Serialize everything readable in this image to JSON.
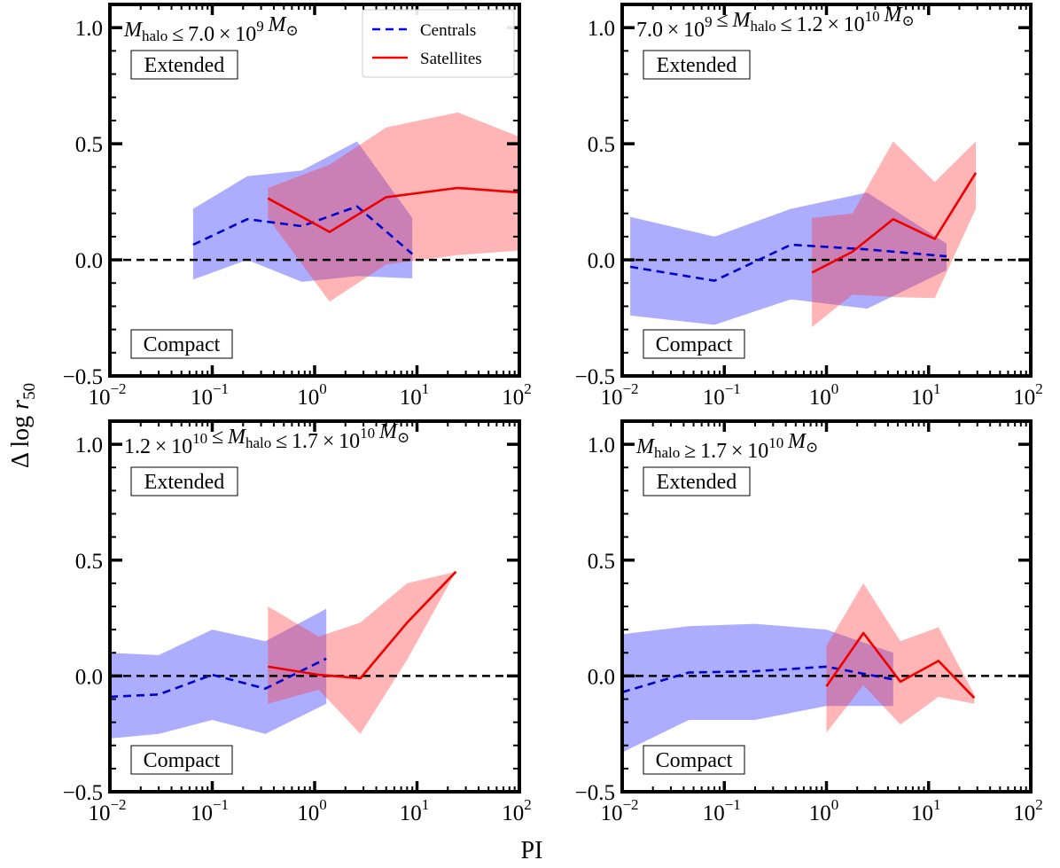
{
  "figure": {
    "xlabel": "PI",
    "ylabel": "Δ log r",
    "ylabel_sub": "50"
  },
  "legend": {
    "entries": [
      {
        "label": "Centrals",
        "color": "#0000ff",
        "style": "dashed"
      },
      {
        "label": "Satellites",
        "color": "#ff0000",
        "style": "solid"
      }
    ]
  },
  "labels": {
    "extended": "Extended",
    "compact": "Compact"
  },
  "chart_data": [
    {
      "type": "line",
      "title": "M_halo ≤ 7.0 × 10^9 M⊙",
      "xscale": "log",
      "xlim": [
        0.01,
        100
      ],
      "ylim": [
        -0.5,
        1.1
      ],
      "zero_line": 0,
      "series": [
        {
          "name": "Centrals",
          "x": [
            0.065,
            0.22,
            0.75,
            2.6,
            9.0
          ],
          "y": [
            0.065,
            0.175,
            0.145,
            0.23,
            0.025
          ],
          "lower": [
            -0.085,
            0.0,
            -0.095,
            -0.07,
            -0.08
          ],
          "upper": [
            0.22,
            0.36,
            0.385,
            0.51,
            0.18
          ]
        },
        {
          "name": "Satellites",
          "x": [
            0.35,
            1.4,
            5.0,
            25,
            100
          ],
          "y": [
            0.265,
            0.12,
            0.27,
            0.31,
            0.29
          ],
          "lower": [
            0.18,
            -0.18,
            -0.02,
            0.02,
            0.04
          ],
          "upper": [
            0.31,
            0.41,
            0.57,
            0.635,
            0.53
          ]
        }
      ]
    },
    {
      "type": "line",
      "title": "7.0 × 10^9 ≤ M_halo ≤ 1.2 × 10^10 M⊙",
      "xscale": "log",
      "xlim": [
        0.01,
        100
      ],
      "ylim": [
        -0.5,
        1.1
      ],
      "zero_line": 0,
      "series": [
        {
          "name": "Centrals",
          "x": [
            0.012,
            0.08,
            0.45,
            2.5,
            15
          ],
          "y": [
            -0.03,
            -0.09,
            0.065,
            0.045,
            0.015
          ],
          "lower": [
            -0.24,
            -0.28,
            -0.17,
            -0.21,
            -0.045
          ],
          "upper": [
            0.185,
            0.1,
            0.22,
            0.29,
            0.07
          ]
        },
        {
          "name": "Satellites",
          "x": [
            0.72,
            1.8,
            4.5,
            11.5,
            29
          ],
          "y": [
            -0.055,
            0.035,
            0.175,
            0.09,
            0.375
          ],
          "lower": [
            -0.29,
            -0.15,
            -0.16,
            -0.165,
            0.22
          ],
          "upper": [
            0.18,
            0.2,
            0.51,
            0.335,
            0.51
          ]
        }
      ]
    },
    {
      "type": "line",
      "title": "1.2 × 10^10 ≤ M_halo ≤ 1.7 × 10^10 M⊙",
      "xscale": "log",
      "xlim": [
        0.01,
        100
      ],
      "ylim": [
        -0.5,
        1.1
      ],
      "zero_line": 0,
      "series": [
        {
          "name": "Centrals",
          "x": [
            0.01,
            0.03,
            0.1,
            0.33,
            1.3
          ],
          "y": [
            -0.09,
            -0.08,
            0.005,
            -0.055,
            0.075
          ],
          "lower": [
            -0.27,
            -0.25,
            -0.19,
            -0.25,
            -0.12
          ],
          "upper": [
            0.1,
            0.09,
            0.2,
            0.15,
            0.29
          ]
        },
        {
          "name": "Satellites",
          "x": [
            0.35,
            1.1,
            2.8,
            8.0,
            24
          ],
          "y": [
            0.04,
            0.005,
            -0.01,
            0.23,
            0.45
          ],
          "lower": [
            -0.12,
            -0.06,
            -0.25,
            0.07,
            0.45
          ],
          "upper": [
            0.3,
            0.17,
            0.23,
            0.4,
            0.45
          ]
        }
      ]
    },
    {
      "type": "line",
      "title": "M_halo ≥ 1.7 × 10^10 M⊙",
      "xscale": "log",
      "xlim": [
        0.01,
        100
      ],
      "ylim": [
        -0.5,
        1.1
      ],
      "zero_line": 0,
      "series": [
        {
          "name": "Centrals",
          "x": [
            0.01,
            0.045,
            0.2,
            1.0,
            4.5
          ],
          "y": [
            -0.07,
            0.015,
            0.02,
            0.04,
            -0.015
          ],
          "lower": [
            -0.33,
            -0.19,
            -0.19,
            -0.13,
            -0.13
          ],
          "upper": [
            0.18,
            0.215,
            0.225,
            0.2,
            0.1
          ]
        },
        {
          "name": "Satellites",
          "x": [
            1.0,
            2.3,
            5.3,
            12.5,
            28
          ],
          "y": [
            -0.045,
            0.185,
            -0.025,
            0.065,
            -0.095
          ],
          "lower": [
            -0.245,
            -0.04,
            -0.21,
            -0.09,
            -0.12
          ],
          "upper": [
            0.13,
            0.4,
            0.15,
            0.21,
            -0.08
          ]
        }
      ]
    }
  ]
}
